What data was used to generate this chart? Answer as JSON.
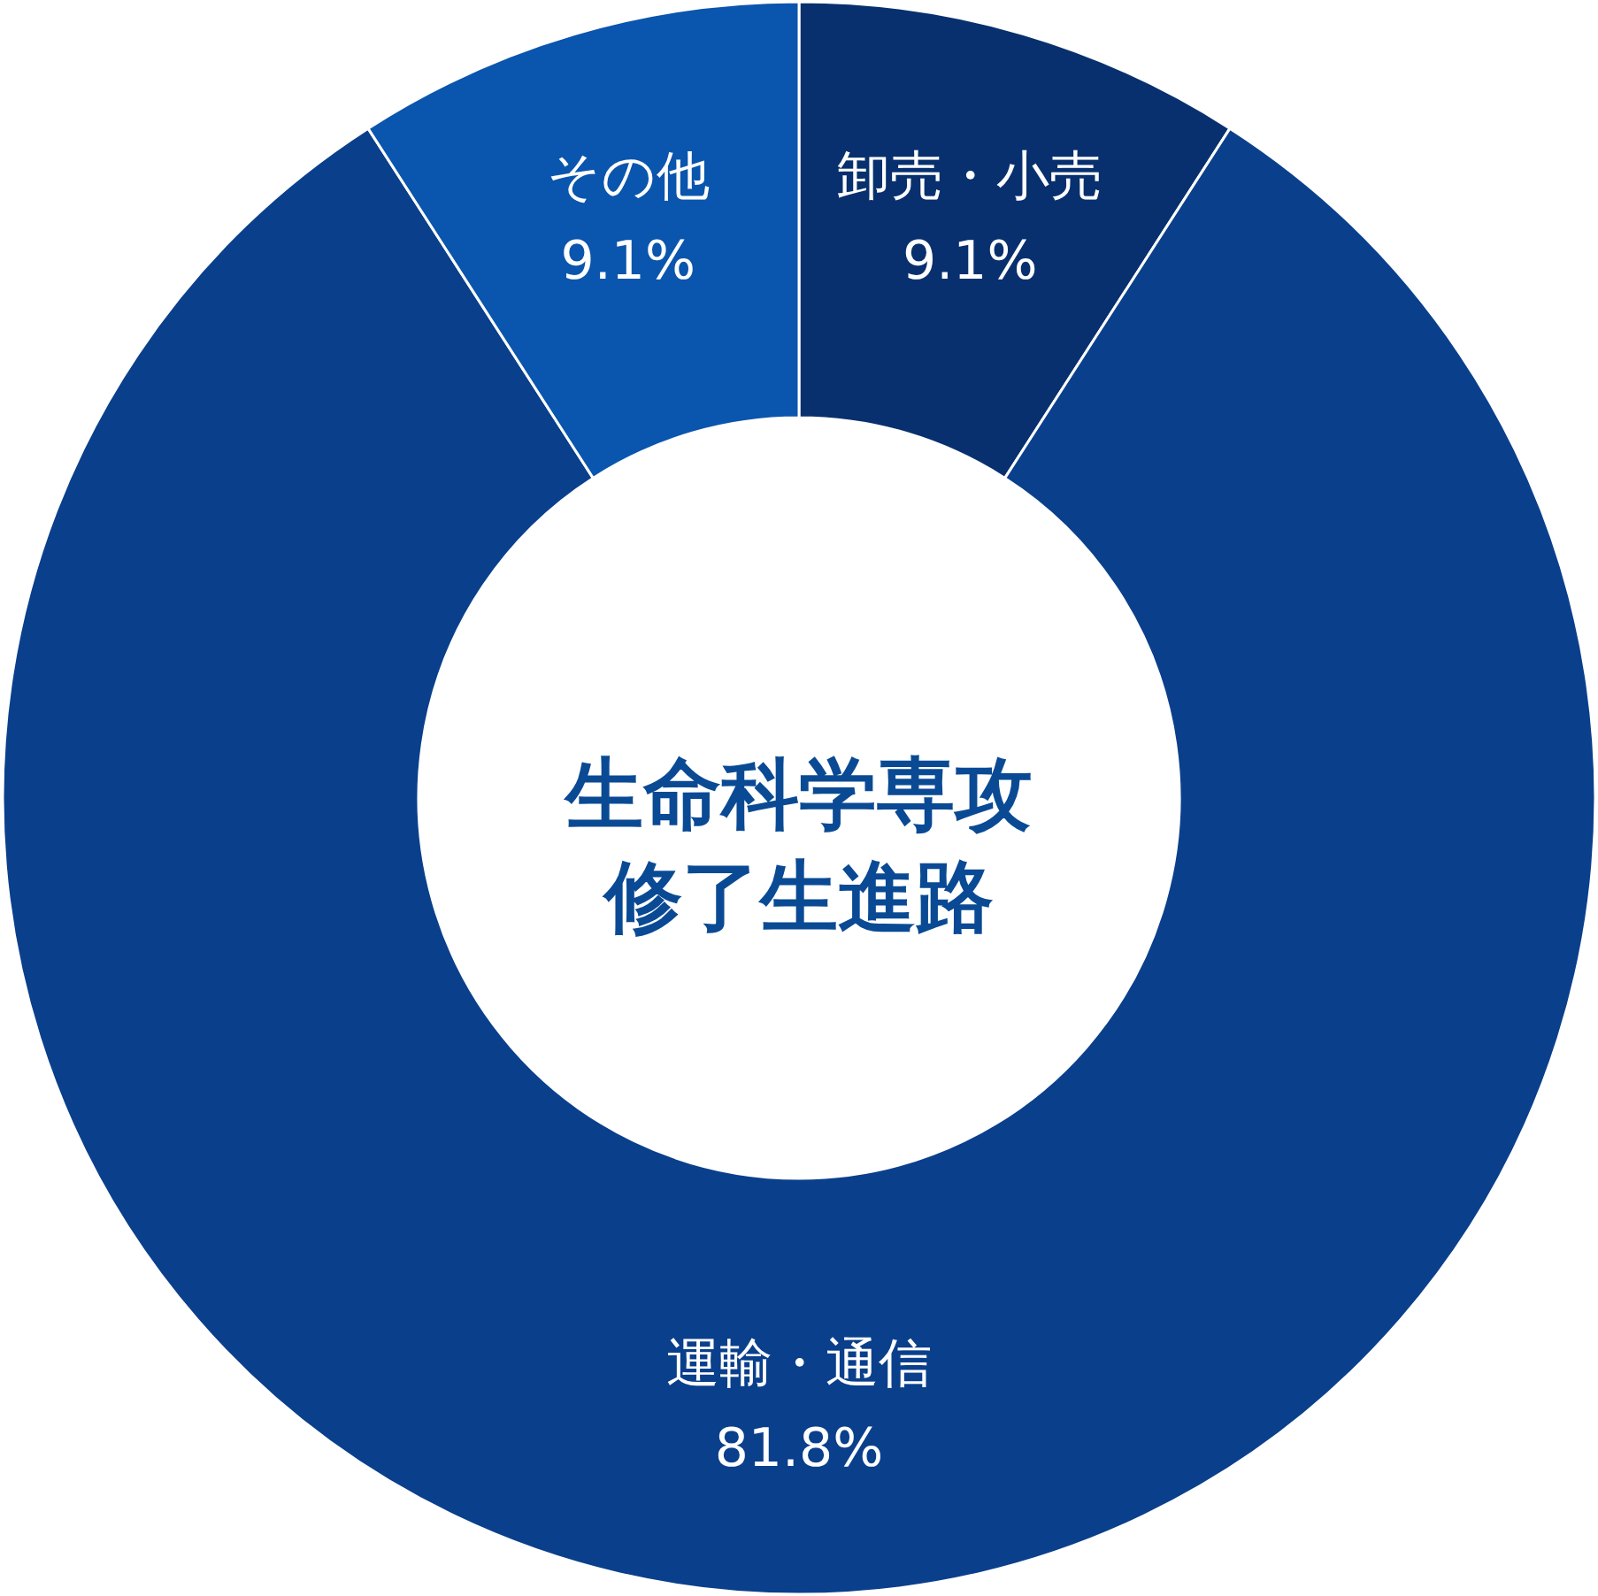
{
  "chart_data": {
    "type": "donut",
    "title": "生命科学専攻修了生進路",
    "categories": [
      "卸売・小売",
      "運輸・通信",
      "その他"
    ],
    "values": [
      9.1,
      81.8,
      9.1
    ],
    "value_labels": [
      "9.1%",
      "81.8%",
      "9.1%"
    ],
    "colors": [
      "#08306e",
      "#0a3f8c",
      "#0a55ad"
    ]
  }
}
